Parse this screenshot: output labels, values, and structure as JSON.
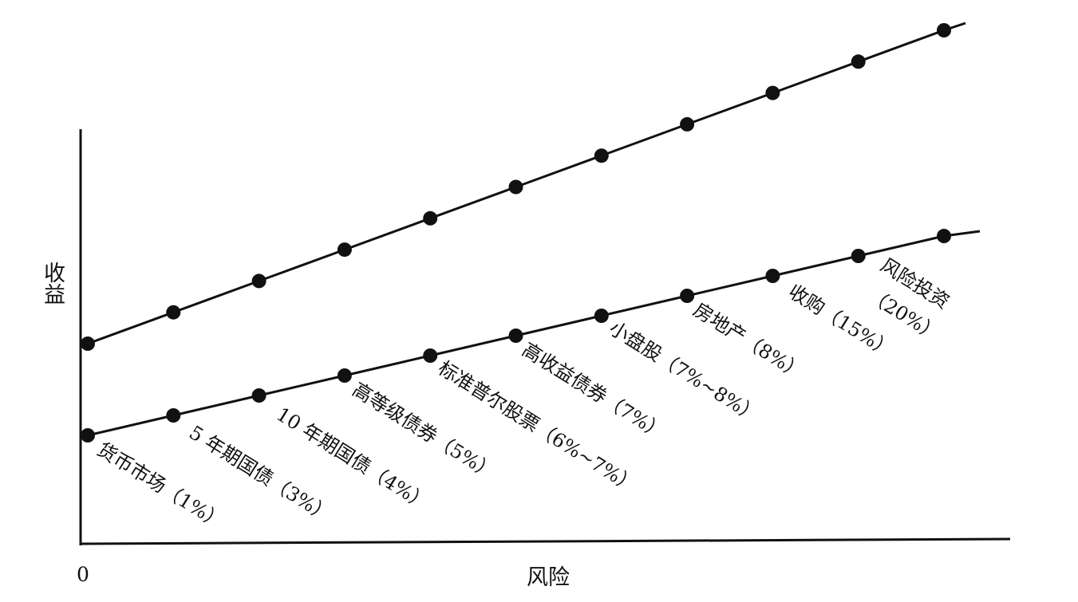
{
  "chart_data": {
    "type": "line",
    "xlabel": "风险",
    "ylabel": "收益",
    "origin_label": "0",
    "grid": false,
    "legend": "none",
    "series": [
      {
        "values": [
          0,
          1,
          2,
          3,
          4,
          5,
          6,
          7,
          8,
          9,
          10
        ]
      },
      {
        "values": [
          0,
          1,
          2,
          3,
          4,
          5,
          6,
          7,
          8,
          9,
          10
        ],
        "labels": [
          "货币市场（1%）",
          "5 年期国债（3%）",
          "10 年期国债（4%）",
          "高等级债券（5%）",
          "标准普尔股票（6%~7%）",
          "高收益债券（7%）",
          "小盘股（7%~8%）",
          "房地产（8%）",
          "收购（15%）",
          "风险投资",
          "（20%）"
        ]
      }
    ]
  }
}
